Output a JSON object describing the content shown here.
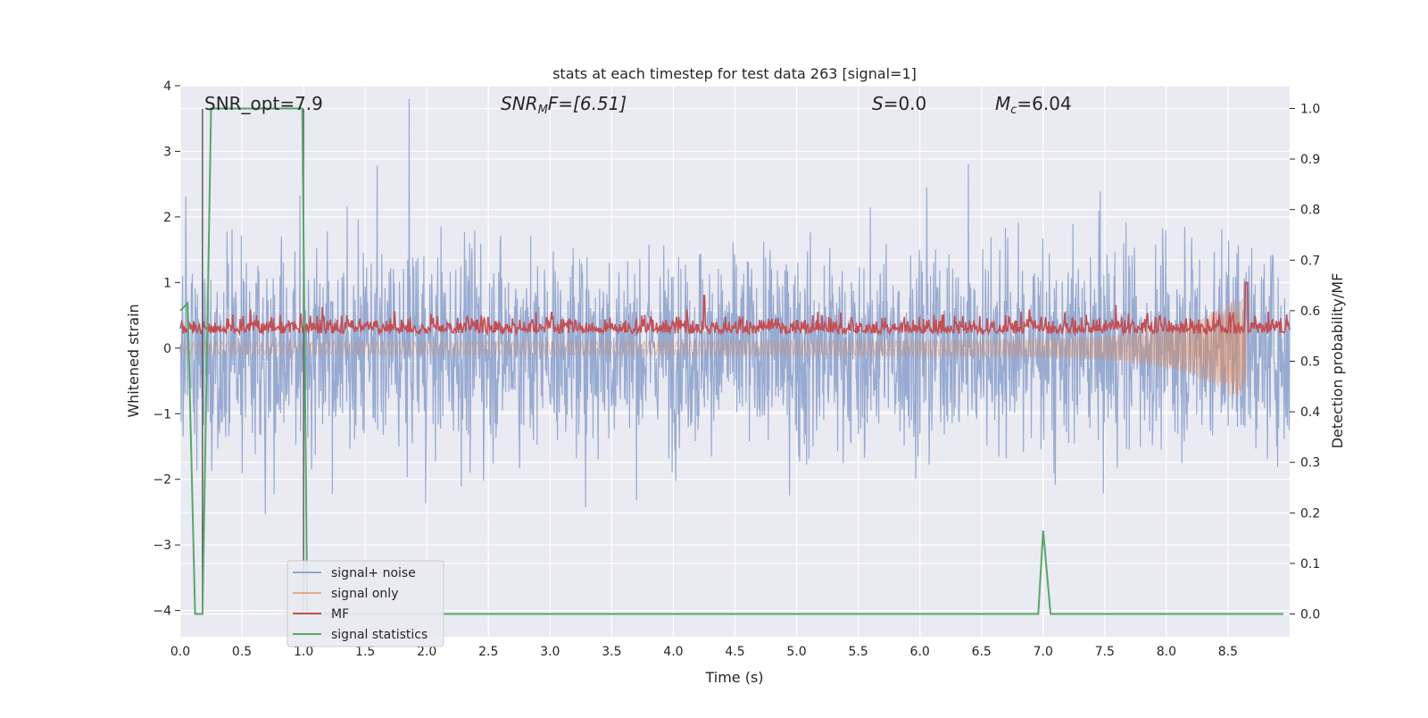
{
  "chart_data": {
    "type": "line",
    "title": "stats at each timestep for test data 263 [signal=1]",
    "xlabel": "Time (s)",
    "ylabel_left": "Whitened strain",
    "ylabel_right": "Detection probability/MF",
    "xlim": [
      0.0,
      9.0
    ],
    "ylim_left": [
      -4.4,
      4.0
    ],
    "ylim_right": [
      -0.045,
      1.045
    ],
    "x_ticks": [
      0.0,
      0.5,
      1.0,
      1.5,
      2.0,
      2.5,
      3.0,
      3.5,
      4.0,
      4.5,
      5.0,
      5.5,
      6.0,
      6.5,
      7.0,
      7.5,
      8.0,
      8.5
    ],
    "x_tick_labels": [
      "0.0",
      "0.5",
      "1.0",
      "1.5",
      "2.0",
      "2.5",
      "3.0",
      "3.5",
      "4.0",
      "4.5",
      "5.0",
      "5.5",
      "6.0",
      "6.5",
      "7.0",
      "7.5",
      "8.0",
      "8.5"
    ],
    "y_left_ticks": [
      4,
      3,
      2,
      1,
      0,
      -1,
      -2,
      -3,
      -4
    ],
    "y_left_tick_labels": [
      "4",
      "3",
      "2",
      "1",
      "0",
      "−1",
      "−2",
      "−3",
      "−4"
    ],
    "y_right_ticks": [
      1.0,
      0.9,
      0.8,
      0.7,
      0.6,
      0.5,
      0.4,
      0.3,
      0.2,
      0.1,
      0.0
    ],
    "y_right_tick_labels": [
      "1.0",
      "0.9",
      "0.8",
      "0.7",
      "0.6",
      "0.5",
      "0.4",
      "0.3",
      "0.2",
      "0.1",
      "0.0"
    ],
    "grid": true,
    "annotations": {
      "snr_opt": "SNR_opt=7.9",
      "snr_mf_sym": "SNR",
      "snr_mf_sub": "M",
      "snr_mf_rest": "F=[6.51]",
      "s_sym": "S",
      "s_rest": "=0.0",
      "mc_sym": "M",
      "mc_sub": "c",
      "mc_rest": "=6.04"
    },
    "vertical_markers": [
      0.18,
      1.0
    ],
    "legend": {
      "position": "lower-left",
      "entries": [
        {
          "label": "signal+ noise",
          "color": "#92a7cf"
        },
        {
          "label": "signal only",
          "color": "#dd8452"
        },
        {
          "label": "MF",
          "color": "#c44e52"
        },
        {
          "label": "signal statistics",
          "color": "#55a868"
        }
      ]
    },
    "series": [
      {
        "name": "signal statistics",
        "axis": "right",
        "color": "#55a868",
        "x": [
          0.0,
          0.06,
          0.12,
          0.18,
          0.25,
          0.99,
          1.03,
          1.06,
          6.96,
          7.0,
          7.06,
          8.95
        ],
        "y": [
          0.6,
          0.615,
          0.0,
          0.0,
          1.0,
          1.0,
          0.0,
          0.0,
          0.0,
          0.165,
          0.0,
          0.0
        ]
      },
      {
        "name": "signal+ noise",
        "axis": "left",
        "color": "#92a7cf",
        "description": "dense whitened strain noise, amplitude mostly within ±2.5, peaks to ±3.6"
      },
      {
        "name": "signal only",
        "axis": "left",
        "color": "#dd8452",
        "description": "chirp envelope growing from ±0.05 to about ±0.75 at merger near t=8.65 s"
      },
      {
        "name": "MF",
        "axis": "left",
        "color": "#c44e52",
        "description": "matched filter output fluctuating between 0 and about 0.6, spikes to 1.0 near t=8.65 s"
      }
    ]
  }
}
